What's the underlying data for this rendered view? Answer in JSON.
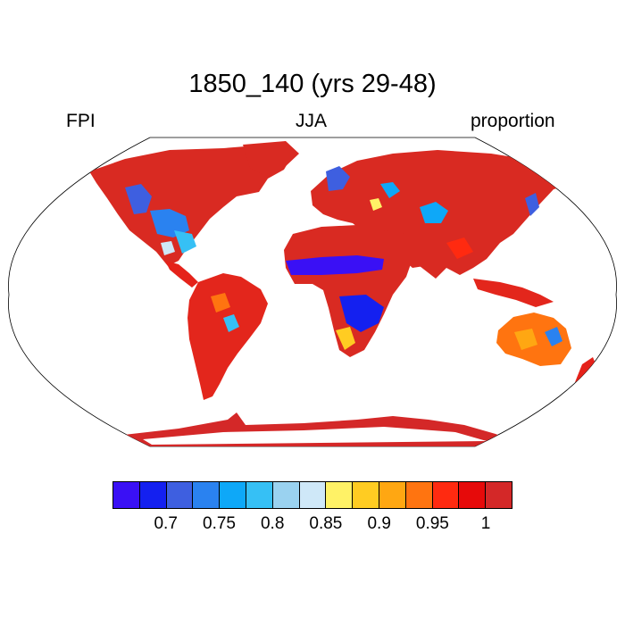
{
  "title": "1850_140 (yrs 29-48)",
  "left_label": "FPI",
  "center_label": "JJA",
  "right_label": "proportion",
  "colorbar": {
    "colors": [
      "#3a10f5",
      "#1420f0",
      "#3e5fe0",
      "#2a82f0",
      "#0ea8f8",
      "#36c0f5",
      "#9ad2f0",
      "#cfe8f8",
      "#fff266",
      "#ffcc22",
      "#ffa712",
      "#ff7410",
      "#ff2a10",
      "#e60a0a",
      "#d42828"
    ],
    "labels": [
      "0.7",
      "0.75",
      "0.8",
      "0.85",
      "0.9",
      "0.95",
      "1"
    ]
  }
}
